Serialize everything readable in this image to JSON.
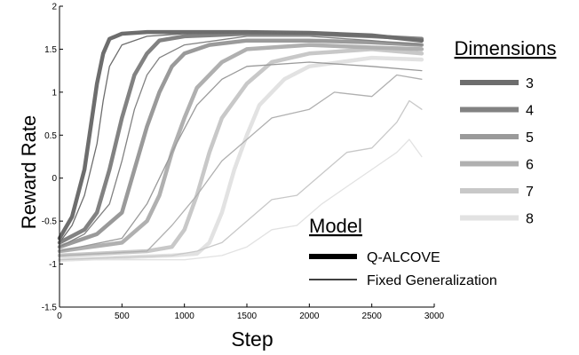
{
  "chart_data": {
    "type": "line",
    "xlabel": "Step",
    "ylabel": "Reward Rate",
    "xlim": [
      0,
      3000
    ],
    "ylim": [
      -1.5,
      2
    ],
    "xticks": [
      0,
      500,
      1000,
      1500,
      2000,
      2500,
      3000
    ],
    "yticks": [
      -1.5,
      -1,
      -0.5,
      0,
      0.5,
      1,
      1.5,
      2
    ],
    "grid": false,
    "dimension_legend": {
      "title": "Dimensions",
      "position": "right",
      "items": [
        {
          "label": "3",
          "color": "#6d6d6d"
        },
        {
          "label": "4",
          "color": "#828282"
        },
        {
          "label": "5",
          "color": "#9a9a9a"
        },
        {
          "label": "6",
          "color": "#b0b0b0"
        },
        {
          "label": "7",
          "color": "#c8c8c8"
        },
        {
          "label": "8",
          "color": "#e2e2e2"
        }
      ]
    },
    "model_legend": {
      "title": "Model",
      "position": "bottom-right",
      "items": [
        {
          "label": "Q-ALCOVE",
          "style": "thick"
        },
        {
          "label": "Fixed Generalization",
          "style": "thin"
        }
      ]
    },
    "series": [
      {
        "dimension": "3",
        "model": "Q-ALCOVE",
        "x": [
          0,
          100,
          200,
          250,
          300,
          350,
          400,
          500,
          700,
          1000,
          1500,
          2000,
          2500,
          2900
        ],
        "y": [
          -0.7,
          -0.45,
          0.1,
          0.6,
          1.1,
          1.45,
          1.62,
          1.68,
          1.7,
          1.7,
          1.7,
          1.69,
          1.66,
          1.6
        ]
      },
      {
        "dimension": "3",
        "model": "Fixed Generalization",
        "x": [
          0,
          100,
          200,
          300,
          350,
          400,
          500,
          700,
          1000,
          1500,
          2000,
          2500,
          2900
        ],
        "y": [
          -0.75,
          -0.55,
          -0.2,
          0.4,
          0.9,
          1.3,
          1.55,
          1.65,
          1.68,
          1.7,
          1.69,
          1.66,
          1.6
        ]
      },
      {
        "dimension": "4",
        "model": "Q-ALCOVE",
        "x": [
          0,
          200,
          300,
          400,
          500,
          600,
          700,
          800,
          1000,
          1500,
          2000,
          2500,
          2900
        ],
        "y": [
          -0.75,
          -0.6,
          -0.4,
          0.1,
          0.7,
          1.2,
          1.45,
          1.6,
          1.65,
          1.68,
          1.68,
          1.65,
          1.62
        ]
      },
      {
        "dimension": "4",
        "model": "Fixed Generalization",
        "x": [
          0,
          200,
          400,
          500,
          600,
          700,
          800,
          1000,
          1500,
          2000,
          2500,
          2900
        ],
        "y": [
          -0.8,
          -0.65,
          -0.3,
          0.2,
          0.8,
          1.2,
          1.4,
          1.55,
          1.65,
          1.65,
          1.6,
          1.55
        ]
      },
      {
        "dimension": "5",
        "model": "Q-ALCOVE",
        "x": [
          0,
          300,
          500,
          600,
          700,
          800,
          900,
          1000,
          1200,
          1500,
          2000,
          2500,
          2900
        ],
        "y": [
          -0.8,
          -0.65,
          -0.4,
          0.1,
          0.6,
          1.0,
          1.3,
          1.45,
          1.55,
          1.6,
          1.6,
          1.58,
          1.55
        ]
      },
      {
        "dimension": "5",
        "model": "Fixed Generalization",
        "x": [
          0,
          500,
          700,
          900,
          1100,
          1300,
          1500,
          2000,
          2500,
          2900
        ],
        "y": [
          -0.85,
          -0.7,
          -0.3,
          0.3,
          0.85,
          1.15,
          1.3,
          1.35,
          1.3,
          1.25
        ]
      },
      {
        "dimension": "6",
        "model": "Q-ALCOVE",
        "x": [
          0,
          500,
          700,
          800,
          900,
          1000,
          1100,
          1300,
          1500,
          2000,
          2500,
          2900
        ],
        "y": [
          -0.85,
          -0.75,
          -0.5,
          -0.2,
          0.3,
          0.7,
          1.05,
          1.35,
          1.5,
          1.55,
          1.52,
          1.5
        ]
      },
      {
        "dimension": "6",
        "model": "Fixed Generalization",
        "x": [
          0,
          700,
          900,
          1100,
          1300,
          1500,
          1700,
          2000,
          2200,
          2500,
          2700,
          2900
        ],
        "y": [
          -0.9,
          -0.85,
          -0.55,
          -0.2,
          0.2,
          0.45,
          0.7,
          0.8,
          1.0,
          0.95,
          1.2,
          1.15
        ]
      },
      {
        "dimension": "7",
        "model": "Q-ALCOVE",
        "x": [
          0,
          700,
          900,
          1000,
          1100,
          1200,
          1300,
          1500,
          1700,
          2000,
          2500,
          2900
        ],
        "y": [
          -0.9,
          -0.85,
          -0.8,
          -0.6,
          -0.2,
          0.3,
          0.7,
          1.1,
          1.35,
          1.45,
          1.5,
          1.45
        ]
      },
      {
        "dimension": "7",
        "model": "Fixed Generalization",
        "x": [
          0,
          900,
          1100,
          1300,
          1500,
          1700,
          1900,
          2100,
          2300,
          2500,
          2700,
          2800,
          2900
        ],
        "y": [
          -0.95,
          -0.9,
          -0.85,
          -0.75,
          -0.5,
          -0.25,
          -0.2,
          0.05,
          0.3,
          0.35,
          0.65,
          0.9,
          0.8
        ]
      },
      {
        "dimension": "8",
        "model": "Q-ALCOVE",
        "x": [
          0,
          900,
          1100,
          1200,
          1300,
          1400,
          1500,
          1600,
          1800,
          2000,
          2500,
          2900
        ],
        "y": [
          -0.95,
          -0.9,
          -0.88,
          -0.75,
          -0.4,
          0.1,
          0.5,
          0.85,
          1.15,
          1.3,
          1.4,
          1.38
        ]
      },
      {
        "dimension": "8",
        "model": "Fixed Generalization",
        "x": [
          0,
          1000,
          1300,
          1500,
          1700,
          1900,
          2100,
          2300,
          2500,
          2700,
          2800,
          2900
        ],
        "y": [
          -0.95,
          -0.95,
          -0.9,
          -0.8,
          -0.6,
          -0.55,
          -0.3,
          -0.1,
          0.1,
          0.3,
          0.45,
          0.25
        ]
      }
    ]
  }
}
